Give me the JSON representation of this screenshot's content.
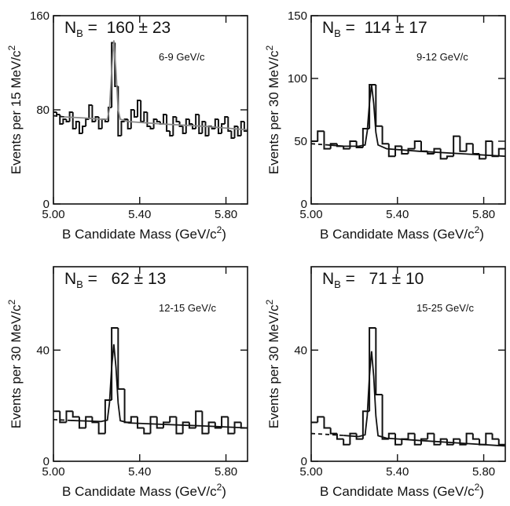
{
  "chart_data": [
    {
      "type": "histogram",
      "annotation": {
        "symbol": "N",
        "subscript": "B",
        "text": " =  160 ± 23"
      },
      "label": "6-9 GeV/c",
      "ylabel": [
        "Events per 15 MeV/c",
        "2"
      ],
      "xlabel": [
        "B Candidate Mass (GeV/c",
        "2",
        ")"
      ],
      "xlim": [
        5.0,
        5.9
      ],
      "xticks": [
        {
          "value": 5.0,
          "label": "5.00"
        },
        {
          "value": 5.4,
          "label": "5.40"
        },
        {
          "value": 5.8,
          "label": "5.80"
        }
      ],
      "ylim": [
        0,
        160
      ],
      "yticks": [
        0,
        80,
        160
      ],
      "bins": [
        5,
        5.015,
        5.03,
        5.045,
        5.06,
        5.075,
        5.09,
        5.105,
        5.12,
        5.135,
        5.15,
        5.165,
        5.18,
        5.195,
        5.21,
        5.225,
        5.24,
        5.255,
        5.27,
        5.285,
        5.3,
        5.315,
        5.33,
        5.345,
        5.36,
        5.375,
        5.39,
        5.405,
        5.42,
        5.435,
        5.45,
        5.465,
        5.48,
        5.495,
        5.51,
        5.525,
        5.54,
        5.555,
        5.57,
        5.585,
        5.6,
        5.615,
        5.63,
        5.645,
        5.66,
        5.675,
        5.69,
        5.705,
        5.72,
        5.735,
        5.75,
        5.765,
        5.78,
        5.795,
        5.81,
        5.825,
        5.84,
        5.855,
        5.87,
        5.885,
        5.9
      ],
      "values": [
        78,
        76,
        68,
        72,
        70,
        78,
        64,
        70,
        60,
        66,
        72,
        84,
        70,
        74,
        64,
        72,
        70,
        82,
        137,
        100,
        58,
        70,
        72,
        64,
        80,
        74,
        88,
        70,
        78,
        66,
        64,
        72,
        70,
        68,
        76,
        62,
        58,
        74,
        70,
        66,
        60,
        72,
        68,
        64,
        76,
        60,
        70,
        58,
        66,
        64,
        72,
        60,
        68,
        74,
        62,
        56,
        66,
        58,
        70,
        62
      ],
      "color": "#111111",
      "fit": {
        "x": [
          5.05,
          5.15,
          5.22,
          5.25,
          5.26,
          5.27,
          5.28,
          5.29,
          5.3,
          5.31,
          5.35,
          5.5,
          5.7,
          5.9
        ],
        "values": [
          74,
          73,
          72,
          72,
          81,
          113,
          139,
          113,
          80,
          72,
          70,
          68,
          66,
          63
        ],
        "color": "#888888"
      },
      "fit_extrapolation": {
        "x": [
          5.0,
          5.05
        ],
        "values": [
          75,
          74
        ],
        "color": "#111111"
      }
    },
    {
      "type": "histogram",
      "annotation": {
        "symbol": "N",
        "subscript": "B",
        "text": " =  114 ± 17"
      },
      "label": "9-12 GeV/c",
      "ylabel": [
        "Events per 30 MeV/c",
        "2"
      ],
      "xlabel": [
        "B Candidate Mass (GeV/c",
        "2",
        ")"
      ],
      "xlim": [
        5.0,
        5.9
      ],
      "xticks": [
        {
          "value": 5.0,
          "label": "5.00"
        },
        {
          "value": 5.4,
          "label": "5.40"
        },
        {
          "value": 5.8,
          "label": "5.80"
        }
      ],
      "ylim": [
        0,
        150
      ],
      "yticks": [
        0,
        50,
        100,
        150
      ],
      "bins": [
        5,
        5.03,
        5.06,
        5.09,
        5.12,
        5.15,
        5.18,
        5.21,
        5.24,
        5.27,
        5.3,
        5.33,
        5.36,
        5.39,
        5.42,
        5.45,
        5.48,
        5.51,
        5.54,
        5.57,
        5.6,
        5.63,
        5.66,
        5.69,
        5.72,
        5.75,
        5.78,
        5.81,
        5.84,
        5.87,
        5.9
      ],
      "values": [
        50,
        58,
        44,
        48,
        46,
        44,
        50,
        45,
        60,
        95,
        62,
        48,
        38,
        46,
        40,
        44,
        50,
        42,
        40,
        44,
        36,
        38,
        54,
        42,
        48,
        40,
        36,
        50,
        38,
        44
      ],
      "color": "#111111",
      "fit": {
        "x": [
          5.08,
          5.15,
          5.22,
          5.25,
          5.26,
          5.27,
          5.28,
          5.29,
          5.3,
          5.31,
          5.35,
          5.5,
          5.7,
          5.9
        ],
        "values": [
          47,
          46,
          46,
          47,
          58,
          80,
          95,
          80,
          57,
          47,
          44,
          42,
          40,
          38
        ],
        "color": "#111111"
      },
      "fit_extrapolation": {
        "x": [
          5.0,
          5.08
        ],
        "values": [
          48,
          47
        ],
        "color": "#111111"
      }
    },
    {
      "type": "histogram",
      "annotation": {
        "symbol": "N",
        "subscript": "B",
        "text": " =   62 ± 13"
      },
      "label": "12-15 GeV/c",
      "ylabel": [
        "Events per 30 MeV/c",
        "2"
      ],
      "xlabel": [
        "B Candidate Mass (GeV/c",
        "2",
        ")"
      ],
      "xlim": [
        5.0,
        5.9
      ],
      "xticks": [
        {
          "value": 5.0,
          "label": "5.00"
        },
        {
          "value": 5.4,
          "label": "5.40"
        },
        {
          "value": 5.8,
          "label": "5.80"
        }
      ],
      "ylim": [
        0,
        70
      ],
      "yticks": [
        0,
        40
      ],
      "bins": [
        5,
        5.03,
        5.06,
        5.09,
        5.12,
        5.15,
        5.18,
        5.21,
        5.24,
        5.27,
        5.3,
        5.33,
        5.36,
        5.39,
        5.42,
        5.45,
        5.48,
        5.51,
        5.54,
        5.57,
        5.6,
        5.63,
        5.66,
        5.69,
        5.72,
        5.75,
        5.78,
        5.81,
        5.84,
        5.87,
        5.9
      ],
      "values": [
        18,
        14,
        18,
        16,
        12,
        16,
        14,
        10,
        22,
        48,
        26,
        14,
        16,
        12,
        10,
        16,
        12,
        14,
        16,
        10,
        14,
        12,
        18,
        10,
        14,
        12,
        16,
        10,
        14,
        12
      ],
      "color": "#111111",
      "fit": {
        "x": [
          5.08,
          5.15,
          5.22,
          5.25,
          5.26,
          5.27,
          5.28,
          5.29,
          5.3,
          5.31,
          5.35,
          5.5,
          5.7,
          5.9
        ],
        "values": [
          14.7,
          14.5,
          14.3,
          14.8,
          21.1,
          33.9,
          42.1,
          33.8,
          21,
          14.6,
          13.8,
          13.3,
          12.7,
          12
        ],
        "color": "#111111"
      },
      "fit_extrapolation": {
        "x": [
          5.0,
          5.08
        ],
        "values": [
          15,
          14.7
        ],
        "color": "#111111"
      }
    },
    {
      "type": "histogram",
      "annotation": {
        "symbol": "N",
        "subscript": "B",
        "text": " =   71 ± 10"
      },
      "label": "15-25 GeV/c",
      "ylabel": [
        "Events per 30 MeV/c",
        "2"
      ],
      "xlabel": [
        "B Candidate Mass (GeV/c",
        "2",
        ")"
      ],
      "xlim": [
        5.0,
        5.9
      ],
      "xticks": [
        {
          "value": 5.0,
          "label": "5.00"
        },
        {
          "value": 5.4,
          "label": "5.40"
        },
        {
          "value": 5.8,
          "label": "5.80"
        }
      ],
      "ylim": [
        0,
        70
      ],
      "yticks": [
        0,
        40
      ],
      "bins": [
        5,
        5.03,
        5.06,
        5.09,
        5.12,
        5.15,
        5.18,
        5.21,
        5.24,
        5.27,
        5.3,
        5.33,
        5.36,
        5.39,
        5.42,
        5.45,
        5.48,
        5.51,
        5.54,
        5.57,
        5.6,
        5.63,
        5.66,
        5.69,
        5.72,
        5.75,
        5.78,
        5.81,
        5.84,
        5.87,
        5.9
      ],
      "values": [
        14,
        16,
        12,
        10,
        8,
        6,
        10,
        8,
        18,
        48,
        24,
        8,
        10,
        6,
        8,
        10,
        6,
        8,
        10,
        6,
        8,
        6,
        8,
        6,
        10,
        8,
        6,
        10,
        8,
        6
      ],
      "color": "#111111",
      "fit": {
        "x": [
          5.15,
          5.22,
          5.25,
          5.26,
          5.27,
          5.28,
          5.29,
          5.3,
          5.31,
          5.35,
          5.5,
          5.7,
          5.9
        ],
        "values": [
          9.3,
          8.9,
          9.5,
          16.5,
          30.6,
          39.6,
          30.5,
          16.3,
          9.2,
          8.3,
          7.5,
          6.5,
          5.5
        ],
        "color": "#111111"
      },
      "fit_extrapolation": {
        "x": [
          5.0,
          5.15
        ],
        "values": [
          10,
          9.3
        ],
        "color": "#111111"
      }
    }
  ]
}
